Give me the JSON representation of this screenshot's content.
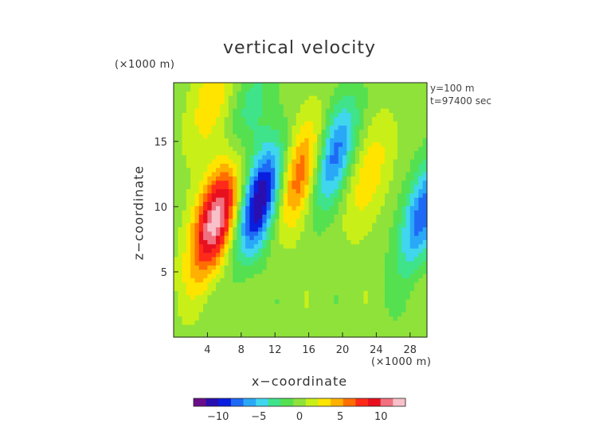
{
  "chart_data": {
    "type": "heatmap",
    "title": "vertical velocity",
    "xlabel": "x−coordinate",
    "ylabel": "z−coordinate",
    "x_unit": "(×1000 m)",
    "y_unit": "(×1000 m)",
    "annotations": [
      "y=100 m",
      "t=97400 sec"
    ],
    "xlim": [
      0,
      30
    ],
    "ylim": [
      0,
      19.5
    ],
    "x_ticks": [
      4,
      8,
      12,
      16,
      20,
      24,
      28
    ],
    "y_ticks": [
      5,
      10,
      15
    ],
    "colorbar": {
      "range": [
        -13,
        13
      ],
      "ticks": [
        -10,
        -5,
        0,
        5,
        10
      ],
      "tick_labels": [
        "−10",
        "−5",
        "0",
        "5",
        "10"
      ],
      "colors": [
        "#6a0d8a",
        "#2a0fb0",
        "#0a1ee0",
        "#1e6af5",
        "#2aa8f8",
        "#40d6ee",
        "#3fe38a",
        "#55e050",
        "#8fe23a",
        "#c8f018",
        "#ffe400",
        "#ffb000",
        "#ff6e00",
        "#ff2a1a",
        "#e8101e",
        "#f07080",
        "#f8c0c8"
      ]
    },
    "field_features": [
      {
        "kind": "updraft",
        "x": 5,
        "z": 9,
        "peak": 12.5
      },
      {
        "kind": "downdraft",
        "x": 10.2,
        "z": 10.5,
        "peak": -12
      },
      {
        "kind": "updraft",
        "x": 15,
        "z": 12.5,
        "peak": 7
      },
      {
        "kind": "downdraft",
        "x": 19,
        "z": 14,
        "peak": -8
      },
      {
        "kind": "updraft",
        "x": 23,
        "z": 12.5,
        "peak": 3.5
      },
      {
        "kind": "downdraft",
        "x": 29.5,
        "z": 9.5,
        "peak": -8
      },
      {
        "kind": "updraft",
        "x": 4.5,
        "z": 18.3,
        "peak": 3.5
      },
      {
        "kind": "downdraft",
        "x": 9,
        "z": 17.5,
        "peak": -3
      }
    ]
  }
}
